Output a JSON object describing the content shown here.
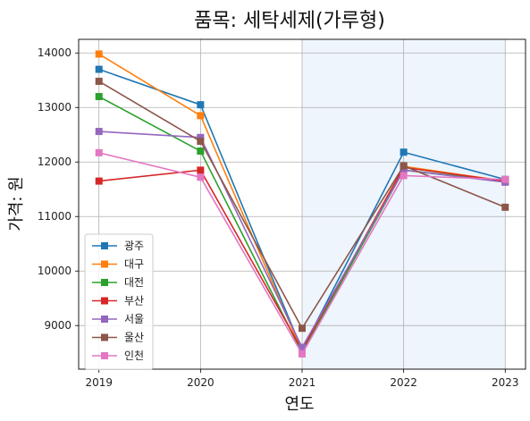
{
  "chart_data": {
    "type": "line",
    "title": "품목: 세탁세제(가루형)",
    "xlabel": "연도",
    "ylabel": "가격: 원",
    "x": [
      2019,
      2020,
      2021,
      2022,
      2023
    ],
    "x_ticks": [
      "2019",
      "2020",
      "2021",
      "2022",
      "2023"
    ],
    "y_ticks": [
      "9000",
      "10000",
      "11000",
      "12000",
      "13000",
      "14000"
    ],
    "xlim": [
      2018.8,
      2023.2
    ],
    "ylim": [
      8200,
      14250
    ],
    "grid": true,
    "highlight_range": [
      2021,
      2023
    ],
    "highlight_color": "#eef5fd",
    "legend_position": "lower-left",
    "series": [
      {
        "name": "광주",
        "color": "#1f77b4",
        "values": [
          13700,
          13050,
          8550,
          12180,
          11680
        ]
      },
      {
        "name": "대구",
        "color": "#ff7f0e",
        "values": [
          13980,
          12850,
          8520,
          11920,
          11650
        ]
      },
      {
        "name": "대전",
        "color": "#2ca02c",
        "values": [
          13200,
          12200,
          8500,
          11850,
          11650
        ]
      },
      {
        "name": "부산",
        "color": "#d62728",
        "values": [
          11650,
          11850,
          8550,
          11900,
          11650
        ]
      },
      {
        "name": "서울",
        "color": "#9467bd",
        "values": [
          12560,
          12450,
          8600,
          11850,
          11630
        ]
      },
      {
        "name": "울산",
        "color": "#8c564b",
        "values": [
          13480,
          12380,
          8950,
          11930,
          11170
        ]
      },
      {
        "name": "인천",
        "color": "#e377c2",
        "values": [
          12170,
          11720,
          8480,
          11750,
          11680
        ]
      }
    ]
  }
}
